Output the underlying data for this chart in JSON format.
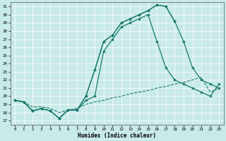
{
  "bg_color": "#c8eae8",
  "line_color": "#1a7a6e",
  "grid_color": "#b0d8d4",
  "xlabel": "Humidex (Indice chaleur)",
  "xlim": [
    -0.5,
    23.5
  ],
  "ylim": [
    16.5,
    31.5
  ],
  "xticks": [
    0,
    1,
    2,
    3,
    4,
    5,
    6,
    7,
    8,
    9,
    10,
    11,
    12,
    13,
    14,
    15,
    16,
    17,
    18,
    19,
    20,
    21,
    22,
    23
  ],
  "yticks": [
    17,
    18,
    19,
    20,
    21,
    22,
    23,
    24,
    25,
    26,
    27,
    28,
    29,
    30,
    31
  ],
  "curve_top_x": [
    0,
    1,
    2,
    3,
    4,
    5,
    6,
    7,
    8,
    9,
    10,
    11,
    12,
    13,
    14,
    15,
    16,
    17,
    18,
    19,
    20,
    21,
    22,
    23
  ],
  "curve_top_y": [
    19.5,
    19.3,
    18.2,
    18.5,
    18.2,
    17.3,
    18.3,
    18.3,
    20.0,
    23.2,
    26.7,
    27.5,
    29.0,
    29.5,
    30.0,
    30.5,
    31.2,
    31.0,
    29.2,
    26.7,
    23.5,
    22.0,
    21.5,
    21.0
  ],
  "curve_mid_x": [
    0,
    1,
    2,
    3,
    4,
    5,
    6,
    7,
    8,
    9,
    10,
    11,
    12,
    13,
    14,
    15,
    16,
    17,
    18,
    19,
    20,
    21,
    22,
    23
  ],
  "curve_mid_y": [
    19.5,
    19.3,
    18.2,
    18.5,
    18.2,
    17.3,
    18.3,
    18.3,
    19.5,
    20.0,
    25.5,
    27.0,
    28.5,
    29.0,
    29.5,
    30.0,
    26.7,
    23.5,
    22.0,
    21.5,
    21.0,
    20.5,
    20.0,
    21.5
  ],
  "curve_short_x": [
    0,
    1,
    2,
    3,
    4,
    5,
    6,
    7,
    8,
    9,
    10,
    11,
    12,
    13,
    14,
    15,
    16,
    17,
    18
  ],
  "curve_short_y": [
    19.5,
    19.3,
    18.2,
    18.5,
    18.2,
    17.3,
    18.3,
    18.3,
    20.0,
    23.2,
    26.7,
    27.5,
    29.0,
    29.5,
    30.0,
    30.5,
    31.2,
    31.0,
    29.2
  ],
  "dashed_x": [
    0,
    1,
    2,
    3,
    4,
    5,
    6,
    7,
    8,
    9,
    10,
    11,
    12,
    13,
    14,
    15,
    16,
    17,
    18,
    19,
    20,
    21,
    22,
    23
  ],
  "dashed_y": [
    19.5,
    19.3,
    18.7,
    18.7,
    18.5,
    18.0,
    18.3,
    18.5,
    19.0,
    19.3,
    19.5,
    19.8,
    20.0,
    20.3,
    20.5,
    20.7,
    21.0,
    21.2,
    21.5,
    21.7,
    22.0,
    22.3,
    20.5,
    21.0
  ]
}
